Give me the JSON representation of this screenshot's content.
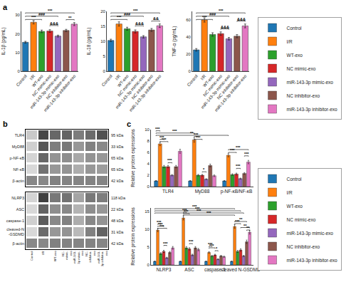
{
  "chart_data": [
    {
      "type": "bar",
      "panel_label": "a",
      "categories": [
        "Control",
        "I/R",
        "WT-exo",
        "NC mimic-exo",
        "miR-143-3p mimic-exo",
        "NC inhibitor-exo",
        "miR-143-3p inhibitor-exo"
      ],
      "values": [
        15.5,
        26.2,
        21.3,
        21.5,
        18.8,
        21.8,
        25.2
      ],
      "errors": [
        0.5,
        0.9,
        0.7,
        0.7,
        0.5,
        0.6,
        0.8
      ],
      "ylabel": "IL-1β (pg/mL)",
      "ylim": [
        0,
        32
      ],
      "yticks": [
        0,
        10,
        20,
        30
      ],
      "grid": false,
      "brackets": [
        {
          "from": "Control",
          "to": "miR-143-3p inhibitor-exo",
          "y": 31.2,
          "label": "***"
        },
        {
          "from": "Control",
          "to": "miR-143-3p mimic-exo",
          "y": 29.44,
          "label": "###"
        },
        {
          "from": "Control",
          "to": "WT-exo",
          "y": 27.68,
          "label": "***"
        },
        {
          "from": "NC mimic-exo",
          "to": "miR-143-3p mimic-exo",
          "y": 24.44,
          "label": "&&&"
        },
        {
          "from": "NC inhibitor-exo",
          "to": "miR-143-3p inhibitor-exo",
          "y": 27.6,
          "label": "**"
        }
      ]
    },
    {
      "type": "bar",
      "categories": [
        "Control",
        "I/R",
        "WT-exo",
        "NC mimic-exo",
        "miR-143-3p mimic-exo",
        "NC inhibitor-exo",
        "miR-143-3p inhibitor-exo"
      ],
      "values": [
        10.3,
        15.8,
        14.2,
        13.3,
        11.5,
        13.8,
        15.2
      ],
      "errors": [
        0.4,
        0.7,
        0.5,
        0.5,
        0.4,
        0.5,
        0.6
      ],
      "ylabel": "IL-18 (pg/mL)",
      "ylim": [
        0,
        20
      ],
      "yticks": [
        0,
        5,
        10,
        15,
        20
      ],
      "grid": false,
      "brackets": [
        {
          "from": "Control",
          "to": "miR-143-3p inhibitor-exo",
          "y": 19.5,
          "label": "***"
        },
        {
          "from": "Control",
          "to": "miR-143-3p mimic-exo",
          "y": 18.4,
          "label": "###"
        },
        {
          "from": "Control",
          "to": "WT-exo",
          "y": 17.3,
          "label": "***"
        },
        {
          "from": "NC mimic-exo",
          "to": "miR-143-3p mimic-exo",
          "y": 15.2,
          "label": "&&&"
        },
        {
          "from": "NC inhibitor-exo",
          "to": "miR-143-3p inhibitor-exo",
          "y": 16.8,
          "label": "&&"
        }
      ]
    },
    {
      "type": "bar",
      "categories": [
        "Control",
        "I/R",
        "WT-exo",
        "NC mimic-exo",
        "miR-143-3p mimic-exo",
        "NC inhibitor-exo",
        "miR-143-3p inhibitor-exo"
      ],
      "values": [
        25.0,
        60.0,
        43.0,
        44.0,
        38.0,
        41.0,
        53.0
      ],
      "errors": [
        1.5,
        2.5,
        2.0,
        2.0,
        1.5,
        1.8,
        2.2
      ],
      "ylabel": "TNF-α (pg/mL)",
      "ylim": [
        0,
        70
      ],
      "yticks": [
        0,
        20,
        40,
        60
      ],
      "grid": false,
      "brackets": [
        {
          "from": "Control",
          "to": "miR-143-3p inhibitor-exo",
          "y": 68.25,
          "label": "***"
        },
        {
          "from": "Control",
          "to": "miR-143-3p mimic-exo",
          "y": 64.4,
          "label": "###"
        },
        {
          "from": "Control",
          "to": "WT-exo",
          "y": 60.55,
          "label": "***"
        },
        {
          "from": "NC mimic-exo",
          "to": "miR-143-3p mimic-exo",
          "y": 49.5,
          "label": "&&&"
        },
        {
          "from": "NC inhibitor-exo",
          "to": "miR-143-3p inhibitor-exo",
          "y": 58.7,
          "label": "&&&"
        }
      ]
    },
    {
      "type": "heatmap",
      "panel_label": "b",
      "categories": [
        "Control",
        "I/R",
        "WT-exo",
        "NC-\nmimic-\nexo",
        "miR-143-\n3p mimic-\nexo",
        "NC-\ninhibitor-\nexo",
        "miR-143-\n3p inhibitor-\nexo"
      ],
      "tick_labels": "y",
      "rows": [
        "TLR4",
        "MyD88",
        "p-NF-κB",
        "NF-κB",
        "β-actin"
      ],
      "rows_right": [
        "95 kDa",
        "33 kDa",
        "65 kDa",
        "65 kDa",
        "42 kDa"
      ],
      "zlim": [
        0,
        1
      ],
      "cells": [
        [
          0.25,
          0.85,
          0.7,
          0.72,
          0.6,
          0.68,
          0.8
        ],
        [
          0.22,
          0.78,
          0.6,
          0.62,
          0.48,
          0.58,
          0.55
        ],
        [
          0.2,
          0.7,
          0.5,
          0.52,
          0.4,
          0.5,
          0.48
        ],
        [
          0.18,
          0.65,
          0.48,
          0.5,
          0.38,
          0.48,
          0.45
        ],
        [
          0.55,
          0.55,
          0.58,
          0.57,
          0.56,
          0.57,
          0.56
        ]
      ]
    },
    {
      "type": "heatmap",
      "categories": [
        "Control",
        "I/R",
        "WT-exo",
        "NC-\nmimic-\nexo",
        "miR-143-\n3p mimic-\nexo",
        "NC-\ninhibitor-\nexo",
        "miR-143-\n3p inhibitor-\nexo"
      ],
      "rows": [
        "NLRP3",
        "ASC",
        "caspase-1",
        "cleaved-N\n-GSDMD",
        "β-actin"
      ],
      "rows_right": [
        "118 kDa",
        "22 kDa",
        "48 kDa",
        "31 kDa",
        "42 kDa"
      ],
      "zlim": [
        0,
        1
      ],
      "cells": [
        [
          0.2,
          0.88,
          0.62,
          0.65,
          0.42,
          0.62,
          0.6
        ],
        [
          0.18,
          0.72,
          0.52,
          0.55,
          0.35,
          0.52,
          0.48
        ],
        [
          0.22,
          0.75,
          0.55,
          0.58,
          0.38,
          0.55,
          0.5
        ],
        [
          0.18,
          0.68,
          0.48,
          0.5,
          0.32,
          0.58,
          0.72
        ],
        [
          0.55,
          0.55,
          0.58,
          0.57,
          0.56,
          0.57,
          0.56
        ]
      ]
    },
    {
      "type": "bar",
      "panel_label": "c",
      "categories": [
        "TLR4",
        "MyD88",
        "p-NF-κB/NF-κB"
      ],
      "series": [
        {
          "name": "Control",
          "values": [
            1.0,
            1.0,
            1.0
          ],
          "errors": [
            0.06,
            0.06,
            0.06
          ]
        },
        {
          "name": "I/R",
          "values": [
            7.5,
            8.2,
            5.5
          ],
          "errors": [
            0.32,
            0.4,
            0.28
          ]
        },
        {
          "name": "WT-exo",
          "values": [
            3.5,
            2.0,
            2.1
          ],
          "errors": [
            0.22,
            0.14,
            0.15
          ]
        },
        {
          "name": "NC mimic-exo",
          "values": [
            3.5,
            2.0,
            2.2
          ],
          "errors": [
            0.22,
            0.14,
            0.16
          ]
        },
        {
          "name": "miR-143-3p mimic-exo",
          "values": [
            2.0,
            1.3,
            1.4
          ],
          "errors": [
            0.12,
            0.09,
            0.1
          ]
        },
        {
          "name": "NC inhibitor-exo",
          "values": [
            3.5,
            3.7,
            2.3
          ],
          "errors": [
            0.22,
            0.25,
            0.16
          ]
        },
        {
          "name": "miR-143-3p inhibitor-exo",
          "values": [
            6.2,
            1.9,
            4.3
          ],
          "errors": [
            0.35,
            0.14,
            0.3
          ]
        }
      ],
      "ylabel": "Relative protein expressions",
      "ylim": [
        0,
        10
      ],
      "yticks": [
        0,
        2,
        4,
        6,
        8,
        10
      ],
      "grid": false,
      "legend": "right",
      "brackets": [
        {
          "from": [
            "TLR4",
            "Control"
          ],
          "to": [
            "TLR4",
            "I/R"
          ],
          "y": 9.8,
          "label": "***"
        },
        {
          "from": [
            "TLR4",
            "Control"
          ],
          "to": [
            "MyD88",
            "I/R"
          ],
          "y": 9.4,
          "label": "***"
        },
        {
          "from": [
            "TLR4",
            "Control"
          ],
          "to": [
            "p-NF-κB/NF-κB",
            "I/R"
          ],
          "y": 9.0,
          "label": "**"
        },
        {
          "from": [
            "TLR4",
            "I/R"
          ],
          "to": [
            "TLR4",
            "WT-exo"
          ],
          "y": 8.3,
          "label": "***"
        },
        {
          "from": [
            "TLR4",
            "I/R"
          ],
          "to": [
            "TLR4",
            "NC mimic-exo"
          ],
          "y": 7.9,
          "label": "***"
        },
        {
          "from": [
            "MyD88",
            "I/R"
          ],
          "to": [
            "MyD88",
            "WT-exo"
          ],
          "y": 8.8,
          "label": "***"
        },
        {
          "from": [
            "MyD88",
            "I/R"
          ],
          "to": [
            "MyD88",
            "NC mimic-exo"
          ],
          "y": 8.3,
          "label": "***"
        },
        {
          "from": [
            "p-NF-κB/NF-κB",
            "I/R"
          ],
          "to": [
            "p-NF-κB/NF-κB",
            "miR-143-3p inhibitor-exo"
          ],
          "y": 6.5,
          "label": "***"
        },
        {
          "from": [
            "p-NF-κB/NF-κB",
            "I/R"
          ],
          "to": [
            "p-NF-κB/NF-κB",
            "NC mimic-exo"
          ],
          "y": 6.0,
          "label": "***"
        },
        {
          "from": [
            "TLR4",
            "NC mimic-exo"
          ],
          "to": [
            "TLR4",
            "miR-143-3p mimic-exo"
          ],
          "y": 4.2,
          "label": "***"
        },
        {
          "from": [
            "MyD88",
            "NC mimic-exo"
          ],
          "to": [
            "MyD88",
            "miR-143-3p mimic-exo"
          ],
          "y": 2.6,
          "label": "*"
        },
        {
          "from": [
            "p-NF-κB/NF-κB",
            "NC mimic-exo"
          ],
          "to": [
            "p-NF-κB/NF-κB",
            "miR-143-3p mimic-exo"
          ],
          "y": 3.2,
          "label": "***"
        },
        {
          "from": [
            "p-NF-κB/NF-κB",
            "NC inhibitor-exo"
          ],
          "to": [
            "p-NF-κB/NF-κB",
            "miR-143-3p inhibitor-exo"
          ],
          "y": 5.4,
          "label": "***"
        }
      ]
    },
    {
      "type": "bar",
      "categories": [
        "NLRP3",
        "ASC",
        "caspase-1",
        "cleaved N-GSDMD"
      ],
      "series": [
        {
          "name": "Control",
          "values": [
            1.0,
            1.0,
            1.0,
            1.0
          ],
          "errors": [
            0.06,
            0.06,
            0.06,
            0.06
          ]
        },
        {
          "name": "I/R",
          "values": [
            9.8,
            13.2,
            3.5,
            10.8
          ],
          "errors": [
            0.45,
            0.58,
            0.22,
            0.5
          ]
        },
        {
          "name": "WT-exo",
          "values": [
            3.2,
            4.8,
            2.5,
            3.8
          ],
          "errors": [
            0.25,
            0.35,
            0.18,
            0.3
          ]
        },
        {
          "name": "NC mimic-exo",
          "values": [
            3.8,
            4.5,
            2.8,
            4.2
          ],
          "errors": [
            0.3,
            0.32,
            0.2,
            0.32
          ]
        },
        {
          "name": "miR-143-3p mimic-exo",
          "values": [
            2.0,
            2.8,
            1.6,
            2.5
          ],
          "errors": [
            0.16,
            0.22,
            0.13,
            0.2
          ]
        },
        {
          "name": "NC inhibitor-exo",
          "values": [
            3.5,
            4.8,
            2.5,
            6.5
          ],
          "errors": [
            0.28,
            0.35,
            0.18,
            0.48
          ]
        },
        {
          "name": "miR-143-3p inhibitor-exo",
          "values": [
            4.8,
            4.3,
            2.3,
            9.2
          ],
          "errors": [
            0.38,
            0.32,
            0.17,
            0.55
          ]
        }
      ],
      "ylabel": "Relative protein expressions",
      "ylim": [
        0,
        16
      ],
      "yticks": [
        0,
        5,
        10,
        15
      ],
      "grid": false,
      "legend": "right",
      "brackets": [
        {
          "from": [
            "NLRP3",
            "Control"
          ],
          "to": [
            "cleaved N-GSDMD",
            "I/R"
          ],
          "y": 15.8,
          "label": "***"
        },
        {
          "from": [
            "NLRP3",
            "Control"
          ],
          "to": [
            "cleaved N-GSDMD",
            "NC mimic-exo"
          ],
          "y": 15.2,
          "label": "***"
        },
        {
          "from": [
            "NLRP3",
            "Control"
          ],
          "to": [
            "cleaved N-GSDMD",
            "miR-143-3p mimic-exo"
          ],
          "y": 14.6,
          "label": "***"
        },
        {
          "from": [
            "ASC",
            "I/R"
          ],
          "to": [
            "ASC",
            "NC mimic-exo"
          ],
          "y": 14.4,
          "label": "***"
        },
        {
          "from": [
            "ASC",
            "I/R"
          ],
          "to": [
            "cleaved N-GSDMD",
            "I/R"
          ],
          "y": 14.0,
          "label": "***"
        },
        {
          "from": [
            "NLRP3",
            "I/R"
          ],
          "to": [
            "NLRP3",
            "WT-exo"
          ],
          "y": 11.5,
          "label": "***"
        },
        {
          "from": [
            "NLRP3",
            "I/R"
          ],
          "to": [
            "NLRP3",
            "NC mimic-exo"
          ],
          "y": 10.9,
          "label": "***"
        },
        {
          "from": [
            "NLRP3",
            "I/R"
          ],
          "to": [
            "NLRP3",
            "miR-143-3p mimic-exo"
          ],
          "y": 10.3,
          "label": "***"
        },
        {
          "from": [
            "ASC",
            "I/R"
          ],
          "to": [
            "ASC",
            "WT-exo"
          ],
          "y": 14.8,
          "label": "***"
        },
        {
          "from": [
            "caspase-1",
            "I/R"
          ],
          "to": [
            "caspase-1",
            "WT-exo"
          ],
          "y": 5.2,
          "label": "***"
        },
        {
          "from": [
            "caspase-1",
            "I/R"
          ],
          "to": [
            "caspase-1",
            "NC mimic-exo"
          ],
          "y": 4.8,
          "label": "***"
        },
        {
          "from": [
            "cleaved N-GSDMD",
            "I/R"
          ],
          "to": [
            "cleaved N-GSDMD",
            "NC inhibitor-exo"
          ],
          "y": 12.2,
          "label": "**"
        },
        {
          "from": [
            "cleaved N-GSDMD",
            "I/R"
          ],
          "to": [
            "cleaved N-GSDMD",
            "NC mimic-exo"
          ],
          "y": 11.6,
          "label": "***"
        },
        {
          "from": [
            "cleaved N-GSDMD",
            "NC mimic-exo"
          ],
          "to": [
            "cleaved N-GSDMD",
            "miR-143-3p inhibitor-exo"
          ],
          "y": 10.5,
          "label": "**"
        },
        {
          "from": [
            "NLRP3",
            "NC mimic-exo"
          ],
          "to": [
            "NLRP3",
            "miR-143-3p mimic-exo"
          ],
          "y": 5.5,
          "label": "***"
        },
        {
          "from": [
            "ASC",
            "NC mimic-exo"
          ],
          "to": [
            "ASC",
            "miR-143-3p mimic-exo"
          ],
          "y": 6.0,
          "label": "***"
        },
        {
          "from": [
            "caspase-1",
            "NC mimic-exo"
          ],
          "to": [
            "caspase-1",
            "miR-143-3p mimic-exo"
          ],
          "y": 4.0,
          "label": "*"
        },
        {
          "from": [
            "cleaved N-GSDMD",
            "NC inhibitor-exo"
          ],
          "to": [
            "cleaved N-GSDMD",
            "miR-143-3p inhibitor-exo"
          ],
          "y": 9.8,
          "label": "**"
        }
      ]
    }
  ]
}
